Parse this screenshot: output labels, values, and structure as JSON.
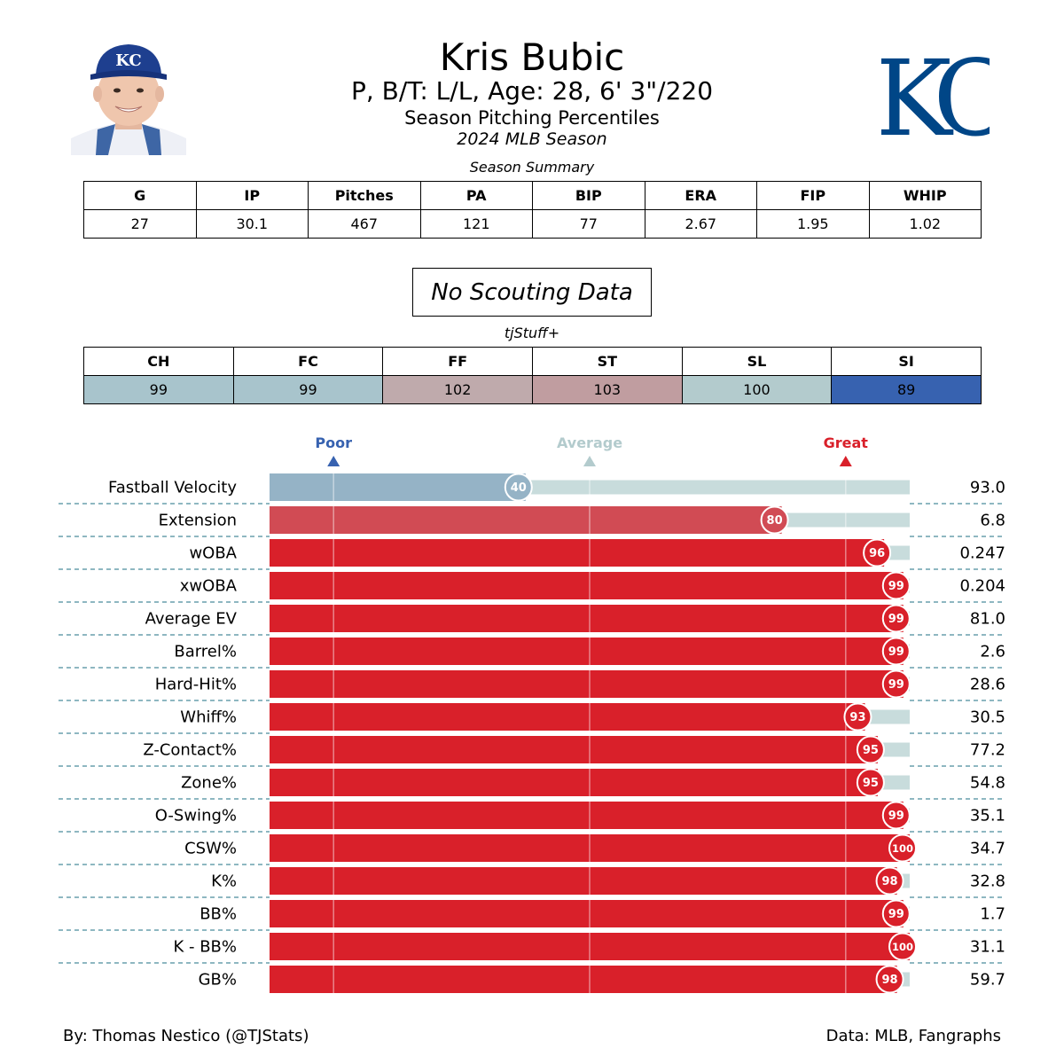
{
  "header": {
    "name": "Kris Bubic",
    "bio": "P, B/T: L/L, Age: 28, 6' 3\"/220",
    "subtitle": "Season Pitching Percentiles",
    "season": "2024 MLB Season",
    "logo_text": "KC",
    "cap_logo_text": "KC"
  },
  "summary": {
    "caption": "Season Summary",
    "headers": [
      "G",
      "IP",
      "Pitches",
      "PA",
      "BIP",
      "ERA",
      "FIP",
      "WHIP"
    ],
    "values": [
      "27",
      "30.1",
      "467",
      "121",
      "77",
      "2.67",
      "1.95",
      "1.02"
    ]
  },
  "scouting": {
    "text": "No Scouting Data"
  },
  "tjstuff": {
    "caption": "tjStuff+",
    "headers": [
      "CH",
      "FC",
      "FF",
      "ST",
      "SL",
      "SI"
    ],
    "values": [
      "99",
      "99",
      "102",
      "103",
      "100",
      "89"
    ],
    "colors": [
      "#a8c4cc",
      "#a8c4cc",
      "#bfaaac",
      "#c09da0",
      "#b3cbcd",
      "#3762b0"
    ]
  },
  "footer": {
    "byline": "By: Thomas Nestico (@TJStats)",
    "source": "Data: MLB, Fangraphs"
  },
  "colors": {
    "poor": "#3762b0",
    "average": "#b3cbcd",
    "great": "#d9202a",
    "track": "#c8dcdc",
    "bar_40": "#95b3c6",
    "bar_80": "#d14b54",
    "bar_high": "#d9202a",
    "logo_blue": "#004687"
  },
  "chart_data": {
    "type": "bar",
    "orientation": "horizontal",
    "xlim": [
      0,
      100
    ],
    "scale_markers": [
      {
        "label": "Poor",
        "value": 10
      },
      {
        "label": "Average",
        "value": 50
      },
      {
        "label": "Great",
        "value": 90
      }
    ],
    "categories": [
      "Fastball Velocity",
      "Extension",
      "wOBA",
      "xwOBA",
      "Average EV",
      "Barrel%",
      "Hard-Hit%",
      "Whiff%",
      "Z-Contact%",
      "Zone%",
      "O-Swing%",
      "CSW%",
      "K%",
      "BB%",
      "K - BB%",
      "GB%"
    ],
    "percentiles": [
      40,
      80,
      96,
      99,
      99,
      99,
      99,
      93,
      95,
      95,
      99,
      100,
      98,
      99,
      100,
      98
    ],
    "values": [
      "93.0",
      "6.8",
      "0.247",
      "0.204",
      "81.0",
      "2.6",
      "28.6",
      "30.5",
      "77.2",
      "54.8",
      "35.1",
      "34.7",
      "32.8",
      "1.7",
      "31.1",
      "59.7"
    ]
  }
}
